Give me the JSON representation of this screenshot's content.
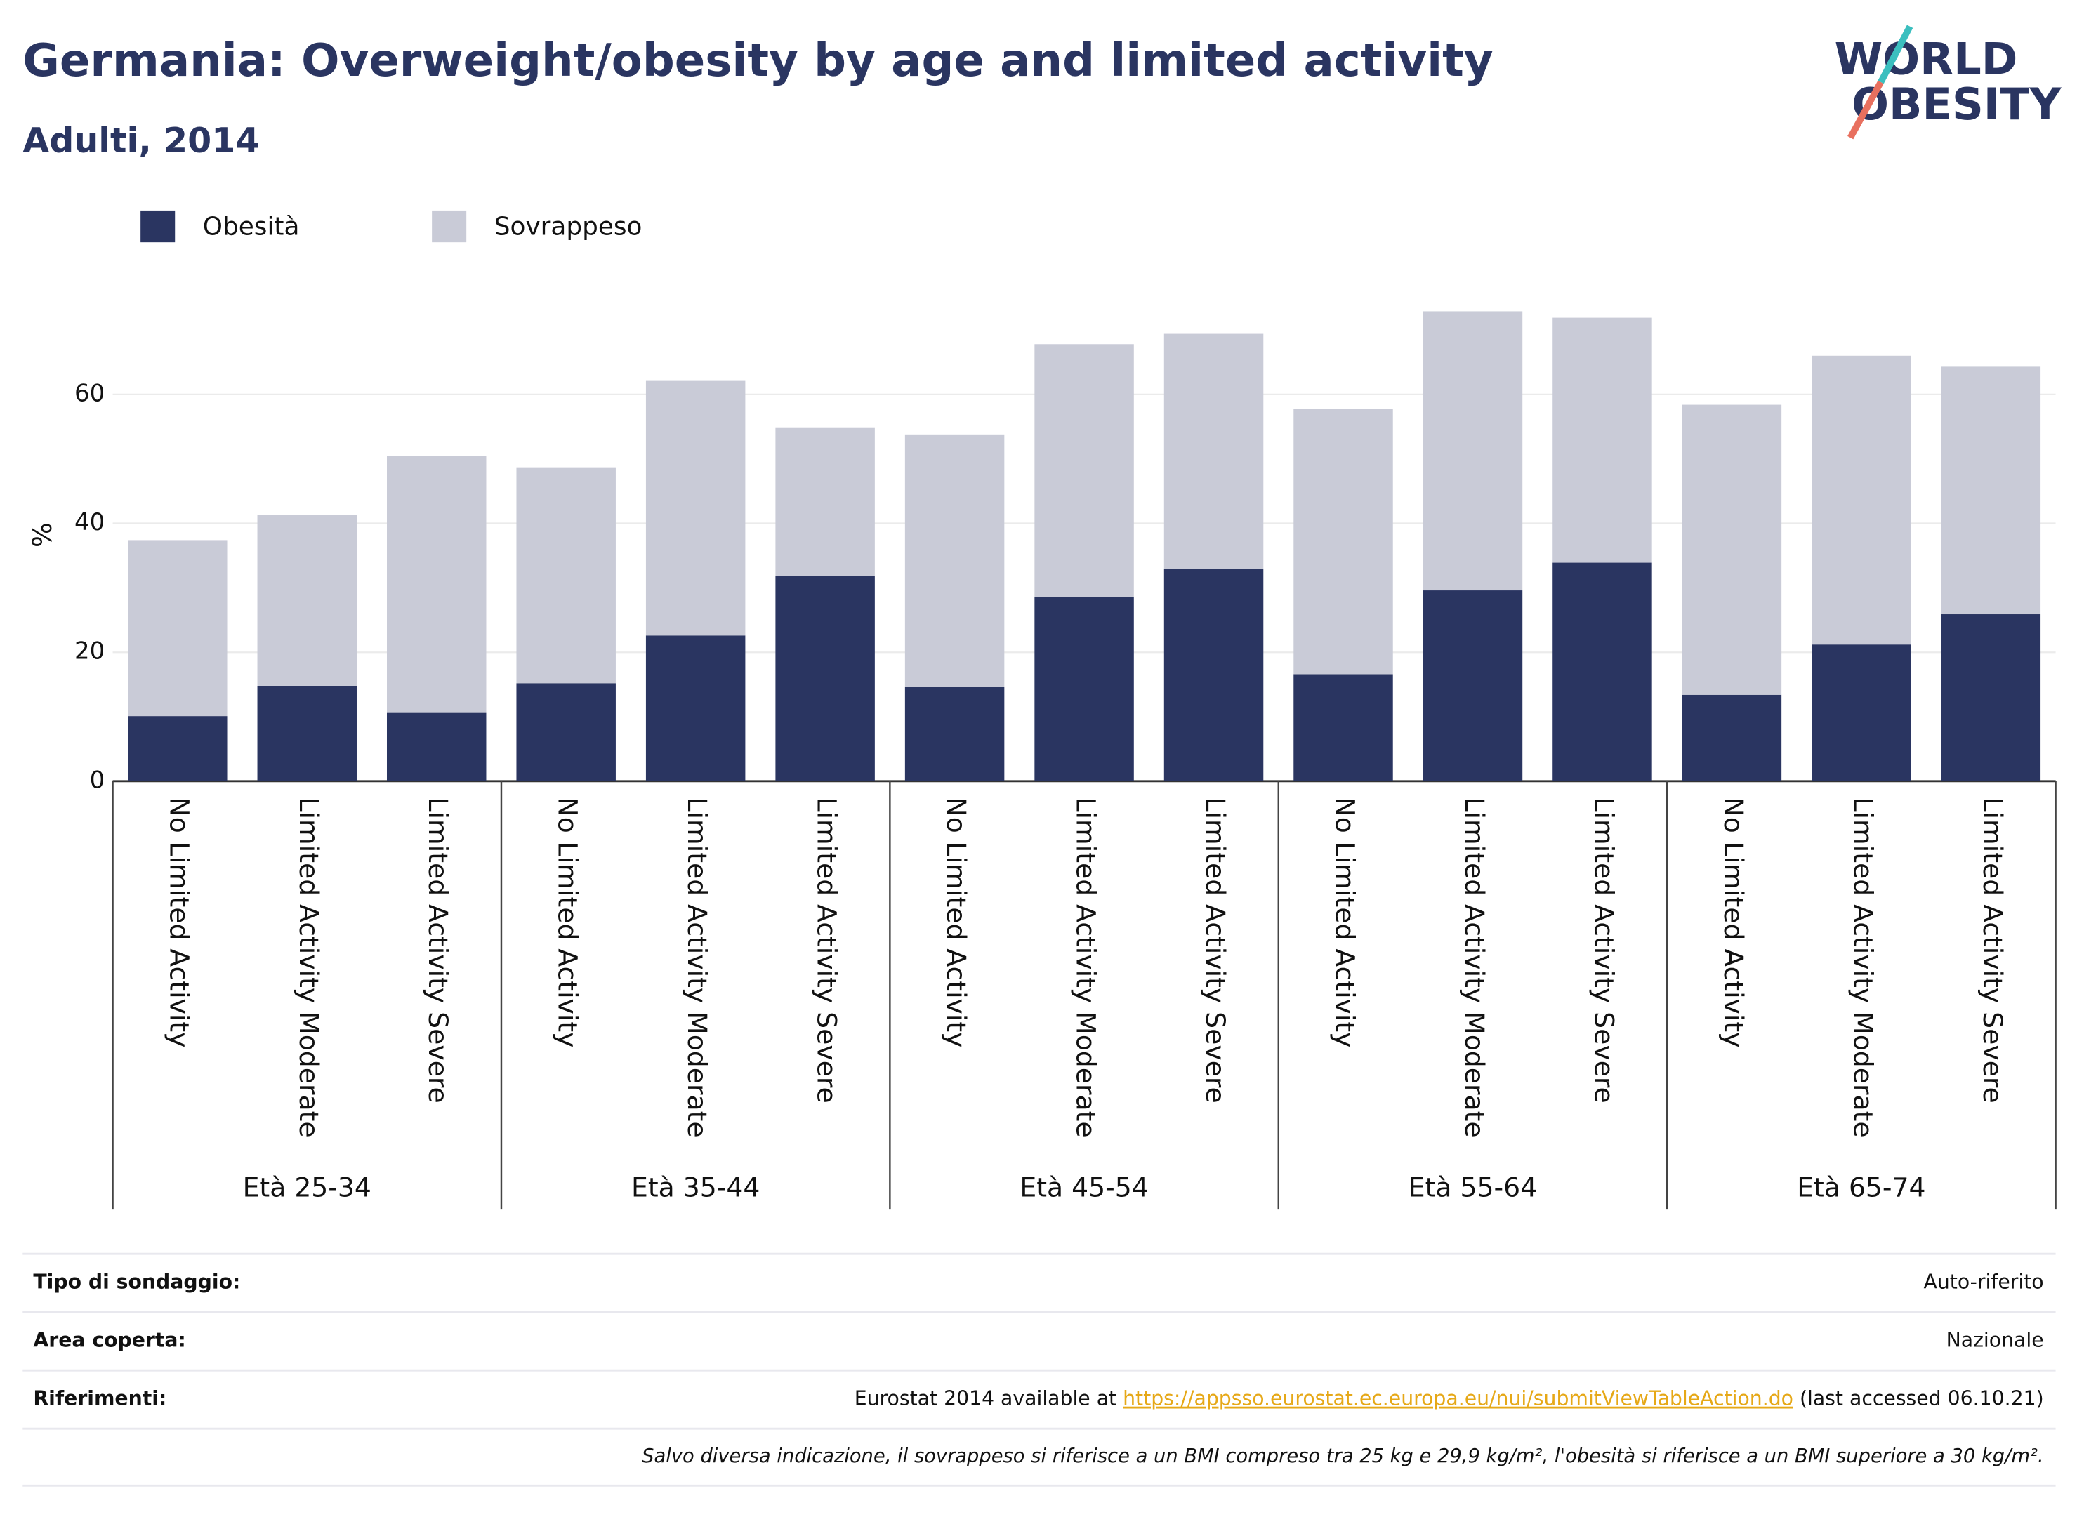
{
  "chart_data": {
    "type": "stacked_bar",
    "title": "Germania: Overweight/obesity by age and limited activity",
    "subtitle": "Adulti, 2014",
    "y_label": "%",
    "categories": [
      "No Limited Activity",
      "Limited Activity Moderate",
      "Limited Activity Severe",
      "No Limited Activity",
      "Limited Activity Moderate",
      "Limited Activity Severe",
      "No Limited Activity",
      "Limited Activity Moderate",
      "Limited Activity Severe",
      "No Limited Activity",
      "Limited Activity Moderate",
      "Limited Activity Severe",
      "No Limited Activity",
      "Limited Activity Moderate",
      "Limited Activity Severe"
    ],
    "groups": [
      "Età 25-34",
      "Età 35-44",
      "Età 45-54",
      "Età 55-64",
      "Età 65-74"
    ],
    "series": [
      {
        "name": "Obesità",
        "color": "#2a3561",
        "values": [
          10.1,
          14.8,
          10.7,
          15.2,
          22.6,
          31.8,
          14.6,
          28.6,
          32.9,
          16.6,
          29.6,
          33.9,
          13.4,
          21.2,
          25.9
        ]
      },
      {
        "name": "Sovrappeso",
        "color": "#c9cbd7",
        "values": [
          27.3,
          26.5,
          39.8,
          33.5,
          39.5,
          23.1,
          39.2,
          39.2,
          36.5,
          41.1,
          43.3,
          38.0,
          45.0,
          44.8,
          38.4
        ]
      }
    ],
    "ylim": [
      0,
      76
    ],
    "yticks": [
      0,
      20,
      40,
      60
    ],
    "grid": true
  },
  "logo": [
    "WORLD",
    "OBESITY"
  ],
  "footer": {
    "rows": [
      {
        "label": "Tipo di sondaggio:",
        "value": "Auto-riferito"
      },
      {
        "label": "Area coperta:",
        "value": "Nazionale"
      }
    ],
    "references": {
      "label": "Riferimenti:",
      "text_before": "Eurostat 2014 available at ",
      "link": "https://appsso.eurostat.ec.europa.eu/nui/submitViewTableAction.do",
      "text_after": " (last accessed 06.10.21)"
    },
    "note": "Salvo diversa indicazione, il sovrappeso si riferisce a un BMI compreso tra 25 kg e 29,9 kg/m², l'obesità si riferisce a un BMI superiore a 30 kg/m²."
  }
}
